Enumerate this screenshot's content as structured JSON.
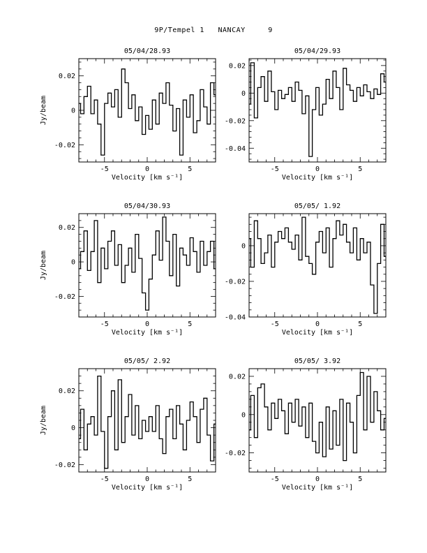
{
  "title": "9P/Tempel 1   NANCAY     9",
  "colors": {
    "line": "#000000",
    "background": "#ffffff"
  },
  "chart_data": [
    {
      "type": "line",
      "title": "05/04/28.93",
      "xlabel": "Velocity [km s⁻¹]",
      "ylabel": "Jy/beam",
      "xlim": [
        -8,
        8
      ],
      "ylim": [
        -0.03,
        0.03
      ],
      "xticks": [
        -5,
        0,
        5
      ],
      "yticks": [
        0.02,
        0,
        -0.02
      ],
      "ytick_labels": [
        "0.02",
        "0",
        "-0.02"
      ],
      "series": [
        {
          "x": [
            -8,
            -7.6,
            -7.2,
            -6.8,
            -6.4,
            -6,
            -5.6,
            -5.2,
            -4.8,
            -4.4,
            -4,
            -3.6,
            -3.2,
            -2.8,
            -2.4,
            -2,
            -1.6,
            -1.2,
            -0.8,
            -0.4,
            0,
            0.4,
            0.8,
            1.2,
            1.6,
            2,
            2.4,
            2.8,
            3.2,
            3.6,
            4,
            4.4,
            4.8,
            5.2,
            5.6,
            6,
            6.4,
            6.8,
            7.2,
            7.6,
            8
          ],
          "y": [
            0.004,
            -0.002,
            0.008,
            0.014,
            -0.002,
            0.006,
            -0.008,
            -0.026,
            0.004,
            0.01,
            0.002,
            0.012,
            -0.004,
            0.024,
            0.016,
            0.001,
            0.009,
            -0.006,
            0.002,
            -0.014,
            -0.003,
            -0.011,
            0.006,
            -0.008,
            0.01,
            0.004,
            0.016,
            0.003,
            -0.012,
            0.001,
            -0.026,
            0.006,
            -0.004,
            0.009,
            -0.013,
            -0.006,
            0.012,
            0.002,
            -0.008,
            0.016,
            0.009
          ]
        }
      ]
    },
    {
      "type": "line",
      "title": "05/04/29.93",
      "xlabel": "Velocity [km s⁻¹]",
      "ylabel": "",
      "xlim": [
        -8,
        8
      ],
      "ylim": [
        -0.05,
        0.025
      ],
      "xticks": [
        -5,
        0,
        5
      ],
      "yticks": [
        0.02,
        0,
        -0.02,
        -0.04
      ],
      "ytick_labels": [
        "0.02",
        "0",
        "-0.02",
        "-0.04"
      ],
      "series": [
        {
          "x": [
            -8,
            -7.6,
            -7.2,
            -6.8,
            -6.4,
            -6,
            -5.6,
            -5.2,
            -4.8,
            -4.4,
            -4,
            -3.6,
            -3.2,
            -2.8,
            -2.4,
            -2,
            -1.6,
            -1.2,
            -0.8,
            -0.4,
            0,
            0.4,
            0.8,
            1.2,
            1.6,
            2,
            2.4,
            2.8,
            3.2,
            3.6,
            4,
            4.4,
            4.8,
            5.2,
            5.6,
            6,
            6.4,
            6.8,
            7.2,
            7.6,
            8
          ],
          "y": [
            -0.008,
            0.022,
            -0.018,
            0.004,
            0.012,
            -0.006,
            0.016,
            0.001,
            -0.012,
            0.002,
            -0.004,
            -0.001,
            0.004,
            -0.006,
            0.008,
            0.002,
            -0.015,
            -0.002,
            -0.046,
            -0.012,
            0.004,
            -0.016,
            -0.008,
            0.01,
            -0.004,
            0.016,
            0.004,
            -0.012,
            0.018,
            0.006,
            0.002,
            -0.006,
            0.004,
            -0.002,
            0.006,
            0.001,
            -0.004,
            0.003,
            -0.001,
            0.014,
            0.008
          ]
        }
      ]
    },
    {
      "type": "line",
      "title": "05/04/30.93",
      "xlabel": "Velocity [km s⁻¹]",
      "ylabel": "Jy/beam",
      "xlim": [
        -8,
        8
      ],
      "ylim": [
        -0.032,
        0.028
      ],
      "xticks": [
        -5,
        0,
        5
      ],
      "yticks": [
        0.02,
        0,
        -0.02
      ],
      "ytick_labels": [
        "0.02",
        "0",
        "-0.02"
      ],
      "series": [
        {
          "x": [
            -8,
            -7.6,
            -7.2,
            -6.8,
            -6.4,
            -6,
            -5.6,
            -5.2,
            -4.8,
            -4.4,
            -4,
            -3.6,
            -3.2,
            -2.8,
            -2.4,
            -2,
            -1.6,
            -1.2,
            -0.8,
            -0.4,
            0,
            0.4,
            0.8,
            1.2,
            1.6,
            2,
            2.4,
            2.8,
            3.2,
            3.6,
            4,
            4.4,
            4.8,
            5.2,
            5.6,
            6,
            6.4,
            6.8,
            7.2,
            7.6,
            8
          ],
          "y": [
            -0.004,
            0.006,
            0.018,
            -0.005,
            0.006,
            0.024,
            -0.012,
            0.008,
            -0.004,
            0.012,
            0.018,
            -0.002,
            0.01,
            -0.012,
            -0.002,
            0.008,
            -0.006,
            0.016,
            0.002,
            -0.018,
            -0.028,
            -0.01,
            0.004,
            0.018,
            0.001,
            0.026,
            0.012,
            -0.008,
            0.016,
            -0.014,
            0.008,
            0.004,
            -0.002,
            0.014,
            0.006,
            -0.006,
            0.012,
            -0.002,
            0.006,
            0.012,
            -0.004
          ]
        }
      ]
    },
    {
      "type": "line",
      "title": "05/05/ 1.92",
      "xlabel": "Velocity [km s⁻¹]",
      "ylabel": "",
      "xlim": [
        -8,
        8
      ],
      "ylim": [
        -0.04,
        0.018
      ],
      "xticks": [
        -5,
        0,
        5
      ],
      "yticks": [
        0,
        -0.02,
        -0.04
      ],
      "ytick_labels": [
        "0",
        "-0.02",
        "-0.04"
      ],
      "series": [
        {
          "x": [
            -8,
            -7.6,
            -7.2,
            -6.8,
            -6.4,
            -6,
            -5.6,
            -5.2,
            -4.8,
            -4.4,
            -4,
            -3.6,
            -3.2,
            -2.8,
            -2.4,
            -2,
            -1.6,
            -1.2,
            -0.8,
            -0.4,
            0,
            0.4,
            0.8,
            1.2,
            1.6,
            2,
            2.4,
            2.8,
            3.2,
            3.6,
            4,
            4.4,
            4.8,
            5.2,
            5.6,
            6,
            6.4,
            6.8,
            7.2,
            7.6,
            8
          ],
          "y": [
            0.004,
            -0.012,
            0.014,
            0.004,
            -0.01,
            -0.004,
            0.006,
            -0.012,
            0.002,
            0.008,
            0.004,
            0.01,
            0.002,
            -0.002,
            0.006,
            -0.008,
            0.016,
            -0.006,
            -0.01,
            -0.016,
            0.002,
            0.008,
            -0.004,
            0.01,
            -0.012,
            0.004,
            0.014,
            0.006,
            0.012,
            0.002,
            -0.004,
            0.01,
            -0.008,
            0.004,
            -0.004,
            0.002,
            -0.022,
            -0.038,
            -0.01,
            0.012,
            -0.006
          ]
        }
      ]
    },
    {
      "type": "line",
      "title": "05/05/ 2.92",
      "xlabel": "Velocity [km s⁻¹]",
      "ylabel": "Jy/beam",
      "xlim": [
        -8,
        8
      ],
      "ylim": [
        -0.024,
        0.032
      ],
      "xticks": [
        -5,
        0,
        5
      ],
      "yticks": [
        0.02,
        0,
        -0.02
      ],
      "ytick_labels": [
        "0.02",
        "0",
        "-0.02"
      ],
      "series": [
        {
          "x": [
            -8,
            -7.6,
            -7.2,
            -6.8,
            -6.4,
            -6,
            -5.6,
            -5.2,
            -4.8,
            -4.4,
            -4,
            -3.6,
            -3.2,
            -2.8,
            -2.4,
            -2,
            -1.6,
            -1.2,
            -0.8,
            -0.4,
            0,
            0.4,
            0.8,
            1.2,
            1.6,
            2,
            2.4,
            2.8,
            3.2,
            3.6,
            4,
            4.4,
            4.8,
            5.2,
            5.6,
            6,
            6.4,
            6.8,
            7.2,
            7.6,
            8
          ],
          "y": [
            -0.006,
            0.01,
            -0.012,
            0.002,
            0.006,
            -0.004,
            0.028,
            -0.002,
            -0.022,
            0.006,
            0.02,
            -0.012,
            0.026,
            -0.008,
            0.006,
            0.018,
            -0.004,
            0.012,
            -0.006,
            0.004,
            -0.002,
            0.006,
            -0.002,
            0.012,
            -0.006,
            -0.014,
            0.006,
            0.01,
            -0.006,
            0.012,
            0.002,
            -0.012,
            0.004,
            0.014,
            0.006,
            -0.008,
            0.01,
            0.016,
            -0.004,
            -0.018,
            0.002
          ]
        }
      ]
    },
    {
      "type": "line",
      "title": "05/05/ 3.92",
      "xlabel": "Velocity [km s⁻¹]",
      "ylabel": "",
      "xlim": [
        -8,
        8
      ],
      "ylim": [
        -0.03,
        0.024
      ],
      "xticks": [
        -5,
        0,
        5
      ],
      "yticks": [
        0.02,
        0,
        -0.02
      ],
      "ytick_labels": [
        "0.02",
        "0",
        "-0.02"
      ],
      "series": [
        {
          "x": [
            -8,
            -7.6,
            -7.2,
            -6.8,
            -6.4,
            -6,
            -5.6,
            -5.2,
            -4.8,
            -4.4,
            -4,
            -3.6,
            -3.2,
            -2.8,
            -2.4,
            -2,
            -1.6,
            -1.2,
            -0.8,
            -0.4,
            0,
            0.4,
            0.8,
            1.2,
            1.6,
            2,
            2.4,
            2.8,
            3.2,
            3.6,
            4,
            4.4,
            4.8,
            5.2,
            5.6,
            6,
            6.4,
            6.8,
            7.2,
            7.6,
            8
          ],
          "y": [
            -0.008,
            0.01,
            -0.012,
            0.014,
            0.016,
            0.004,
            -0.008,
            0.006,
            -0.002,
            0.008,
            0.002,
            -0.01,
            0.006,
            -0.004,
            0.008,
            -0.006,
            0.004,
            -0.012,
            0.006,
            -0.014,
            -0.02,
            -0.004,
            -0.022,
            0.004,
            -0.018,
            0.002,
            -0.016,
            0.008,
            -0.024,
            0.006,
            -0.004,
            -0.02,
            0.01,
            0.022,
            -0.008,
            0.02,
            -0.004,
            0.012,
            0.002,
            -0.008,
            -0.002
          ]
        }
      ]
    }
  ]
}
